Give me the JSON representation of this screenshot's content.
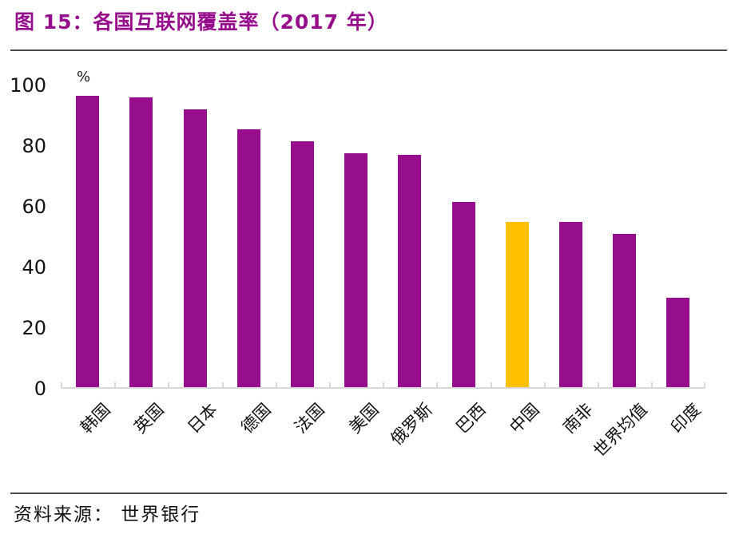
{
  "figure": {
    "title": "图 15：各国互联网覆盖率（2017 年）",
    "source_note": "资料来源： 世界银行"
  },
  "chart_data": {
    "type": "bar",
    "title": "图 15：各国互联网覆盖率（2017 年）",
    "unit": "%",
    "categories": [
      "韩国",
      "英国",
      "日本",
      "德国",
      "法国",
      "美国",
      "俄罗斯",
      "巴西",
      "中国",
      "南非",
      "世界均值",
      "印度"
    ],
    "values": [
      96,
      95.5,
      91.5,
      85,
      81,
      77,
      76.5,
      61,
      54.5,
      54.5,
      50.5,
      29.5
    ],
    "highlight_category": "中国",
    "bar_color": "#970E8C",
    "highlight_color": "#FFC000",
    "axis_color": "#D9D9D9",
    "ylim": [
      0,
      100
    ],
    "yticks": [
      0,
      20,
      40,
      60,
      80,
      100
    ],
    "xlabel": "",
    "ylabel": "%",
    "grid": false,
    "legend": false,
    "source": "世界银行"
  }
}
